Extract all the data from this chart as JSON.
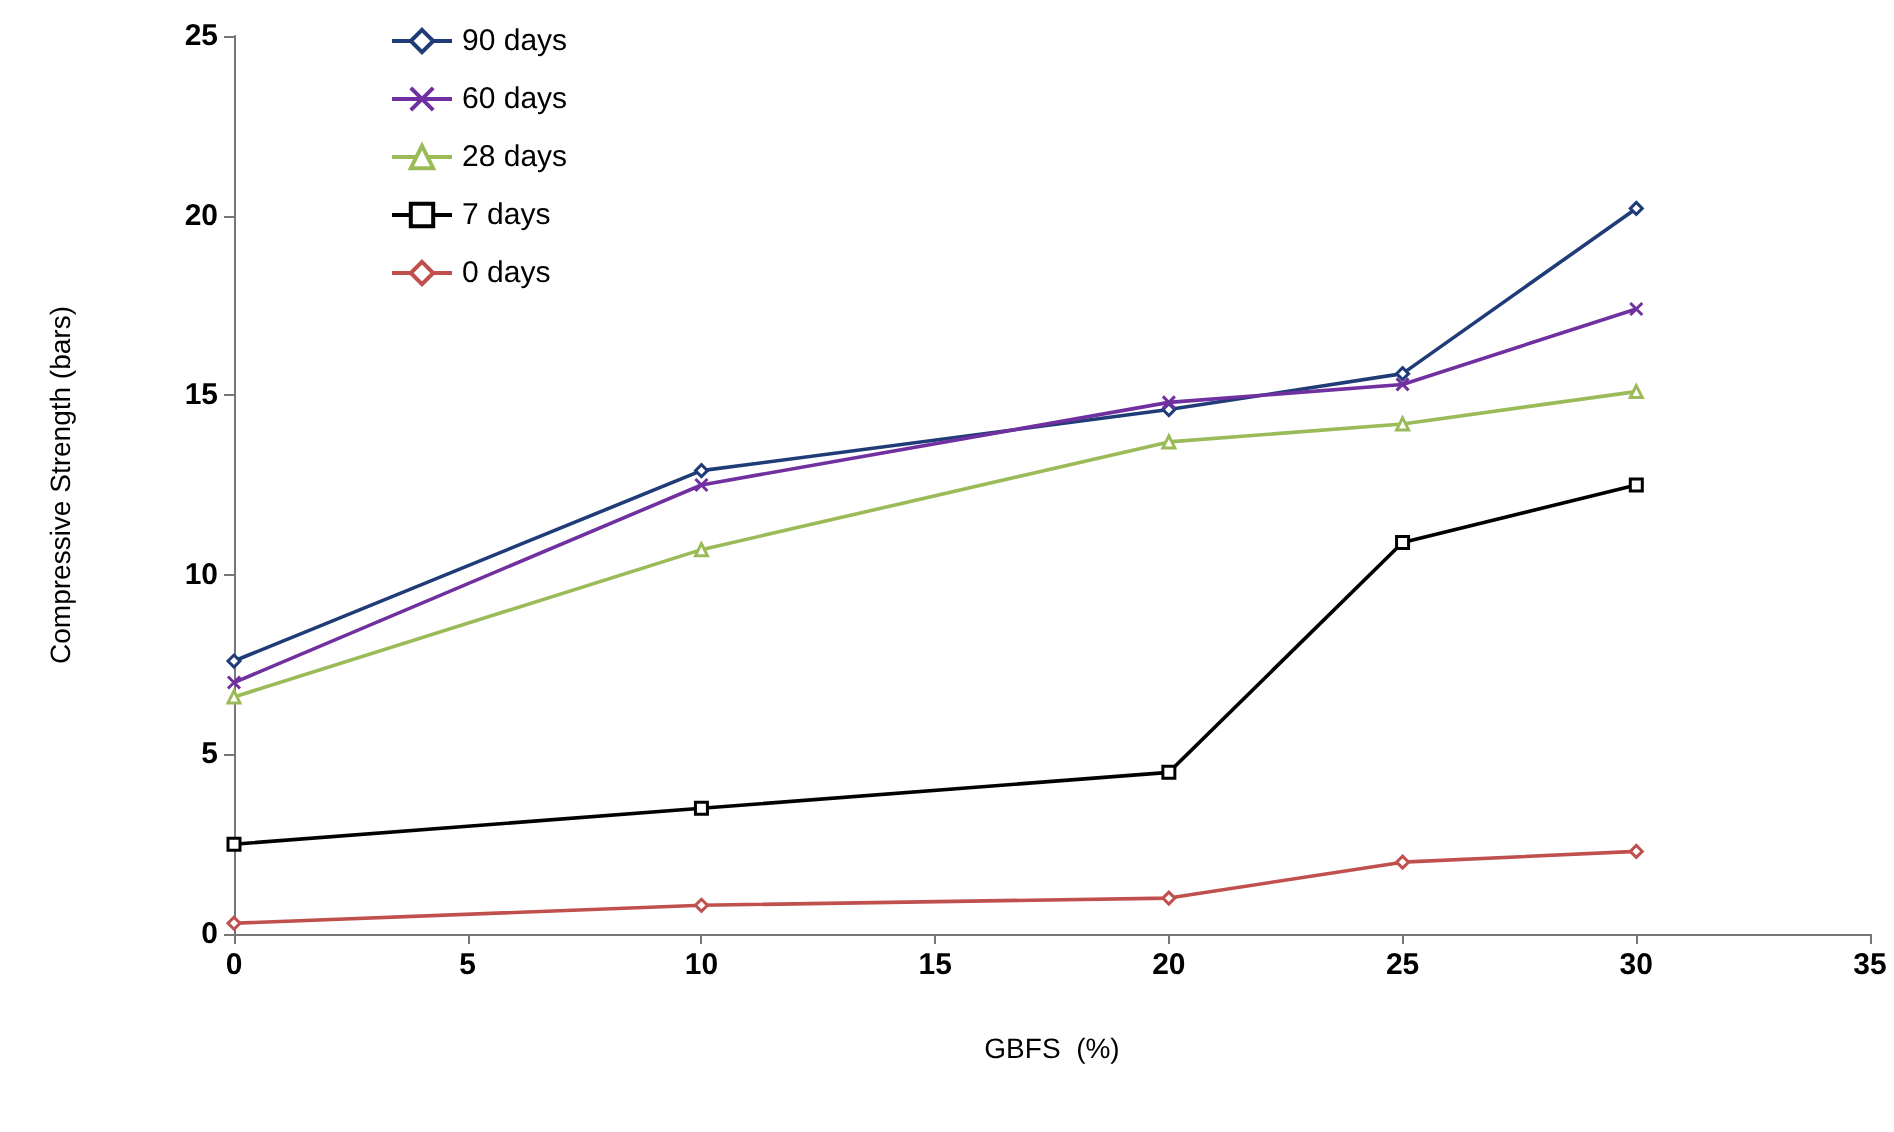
{
  "chart_data": {
    "type": "line",
    "xlabel": "GBFS  (%)",
    "ylabel": "Compressive Strength (bars)",
    "x": [
      0,
      10,
      20,
      25,
      30
    ],
    "xlim": [
      0,
      35
    ],
    "xticks": [
      0,
      5,
      10,
      15,
      20,
      25,
      30,
      35
    ],
    "ylim": [
      0,
      25
    ],
    "yticks": [
      0,
      5,
      10,
      15,
      20,
      25
    ],
    "grid": false,
    "legend": "top left",
    "series": [
      {
        "name": "90 days",
        "color": "#1f3c78",
        "marker": "diamond",
        "values": [
          7.6,
          12.9,
          14.6,
          15.6,
          20.2
        ]
      },
      {
        "name": "60 days",
        "color": "#7030a0",
        "marker": "cross",
        "values": [
          7.0,
          12.5,
          14.8,
          15.3,
          17.4
        ]
      },
      {
        "name": "28 days",
        "color": "#9bbb59",
        "marker": "triangle",
        "values": [
          6.6,
          10.7,
          13.7,
          14.2,
          15.1
        ]
      },
      {
        "name": "7 days",
        "color": "#000000",
        "marker": "square",
        "values": [
          2.5,
          3.5,
          4.5,
          10.9,
          12.5
        ]
      },
      {
        "name": "0 days",
        "color": "#c0504d",
        "marker": "diamond",
        "values": [
          0.3,
          0.8,
          1.0,
          2.0,
          2.3
        ]
      }
    ]
  }
}
